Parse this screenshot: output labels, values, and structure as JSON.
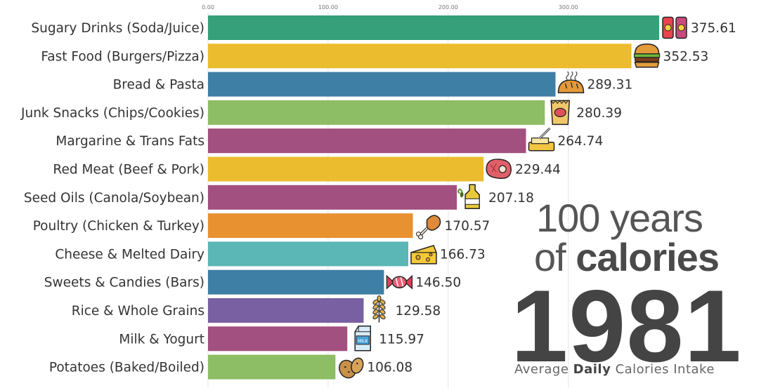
{
  "title": {
    "line1": "100 years",
    "line2_prefix": "of",
    "line2_bold": "calories"
  },
  "year": "1981",
  "subtitle": {
    "prefix": "Average",
    "bold": "Daily",
    "suffix": "Calories Intake"
  },
  "chart_data": {
    "type": "bar",
    "orientation": "horizontal",
    "xlim": [
      0,
      375.61
    ],
    "xticks": [
      "0.00",
      "100.00",
      "200.00",
      "300.00"
    ],
    "xtick_values": [
      0,
      100,
      200,
      300
    ],
    "grid": true,
    "categories": [
      "Sugary Drinks (Soda/Juice)",
      "Fast Food (Burgers/Pizza)",
      "Bread & Pasta",
      "Junk Snacks (Chips/Cookies)",
      "Margarine & Trans Fats",
      "Red Meat (Beef & Pork)",
      "Seed Oils (Canola/Soybean)",
      "Poultry (Chicken & Turkey)",
      "Cheese & Melted Dairy",
      "Sweets & Candies (Bars)",
      "Rice & Whole Grains",
      "Milk & Yogurt",
      "Potatoes (Baked/Boiled)"
    ],
    "values": [
      375.61,
      352.53,
      289.31,
      280.39,
      264.74,
      229.44,
      207.18,
      170.57,
      166.73,
      146.5,
      129.58,
      115.97,
      106.08
    ],
    "value_labels": [
      "375.61",
      "352.53",
      "289.31",
      "280.39",
      "264.74",
      "229.44",
      "207.18",
      "170.57",
      "166.73",
      "146.50",
      "129.58",
      "115.97",
      "106.08"
    ],
    "colors": [
      "#35a079",
      "#ecbc2f",
      "#3e7fa5",
      "#8dbd64",
      "#a2507f",
      "#ecbc2f",
      "#a2507f",
      "#e89131",
      "#5ab7b5",
      "#3e7fa5",
      "#7960a2",
      "#a2507f",
      "#8dbd64"
    ],
    "icons": [
      "soda-cans-icon",
      "burger-icon",
      "bread-loaf-icon",
      "chips-bag-icon",
      "butter-icon",
      "steak-icon",
      "olive-oil-icon",
      "chicken-leg-icon",
      "cheese-icon",
      "candy-icon",
      "wheat-icon",
      "milk-carton-icon",
      "potato-icon"
    ]
  }
}
